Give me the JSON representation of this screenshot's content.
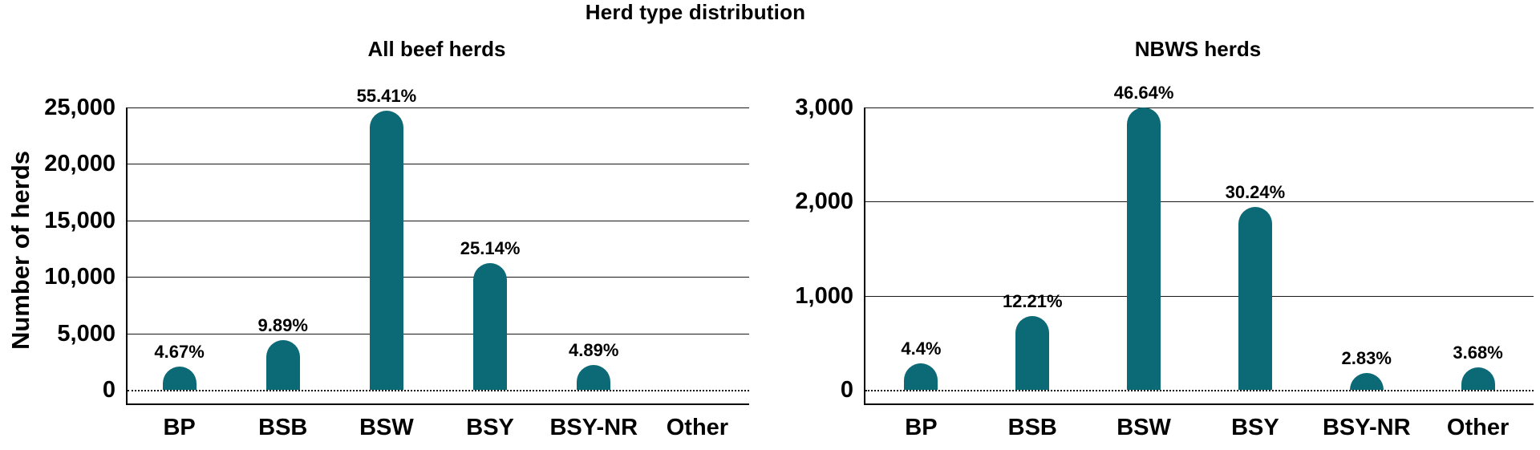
{
  "figure": {
    "title": "Herd type distribution"
  },
  "colors": {
    "bar": "#0b6a76",
    "grid": "#1a1a1a",
    "axis": "#000000",
    "text": "#000000",
    "background": "#ffffff"
  },
  "chart_data": [
    {
      "type": "bar",
      "title": "All beef herds",
      "ylabel": "Number of herds",
      "xlabel": "",
      "ylim": [
        0,
        25000
      ],
      "yticks": [
        0,
        5000,
        10000,
        15000,
        20000,
        25000
      ],
      "ytick_labels": [
        "0",
        "5,000",
        "10,000",
        "15,000",
        "20,000",
        "25,000"
      ],
      "categories": [
        "BP",
        "BSB",
        "BSW",
        "BSY",
        "BSY-NR",
        "Other"
      ],
      "bar_percent_labels": [
        "4.67%",
        "9.89%",
        "55.41%",
        "25.14%",
        "4.89%",
        ""
      ],
      "values_approx_herds": [
        2085,
        4415,
        24740,
        11225,
        2185,
        0
      ],
      "grid": true,
      "legend": false,
      "baseline_style": "dotted-zero-line"
    },
    {
      "type": "bar",
      "title": "NBWS herds",
      "ylabel": "",
      "xlabel": "",
      "ylim": [
        0,
        3000
      ],
      "yticks": [
        0,
        1000,
        2000,
        3000
      ],
      "ytick_labels": [
        "0",
        "1,000",
        "2,000",
        "3,000"
      ],
      "categories": [
        "BP",
        "BSB",
        "BSW",
        "BSY",
        "BSY-NR",
        "Other"
      ],
      "bar_percent_labels": [
        "4.4%",
        "12.21%",
        "46.64%",
        "30.24%",
        "2.83%",
        "3.68%"
      ],
      "values_approx_herds": [
        283,
        785,
        3000,
        1945,
        182,
        237
      ],
      "grid": true,
      "legend": false,
      "baseline_style": "dotted-zero-line"
    }
  ]
}
